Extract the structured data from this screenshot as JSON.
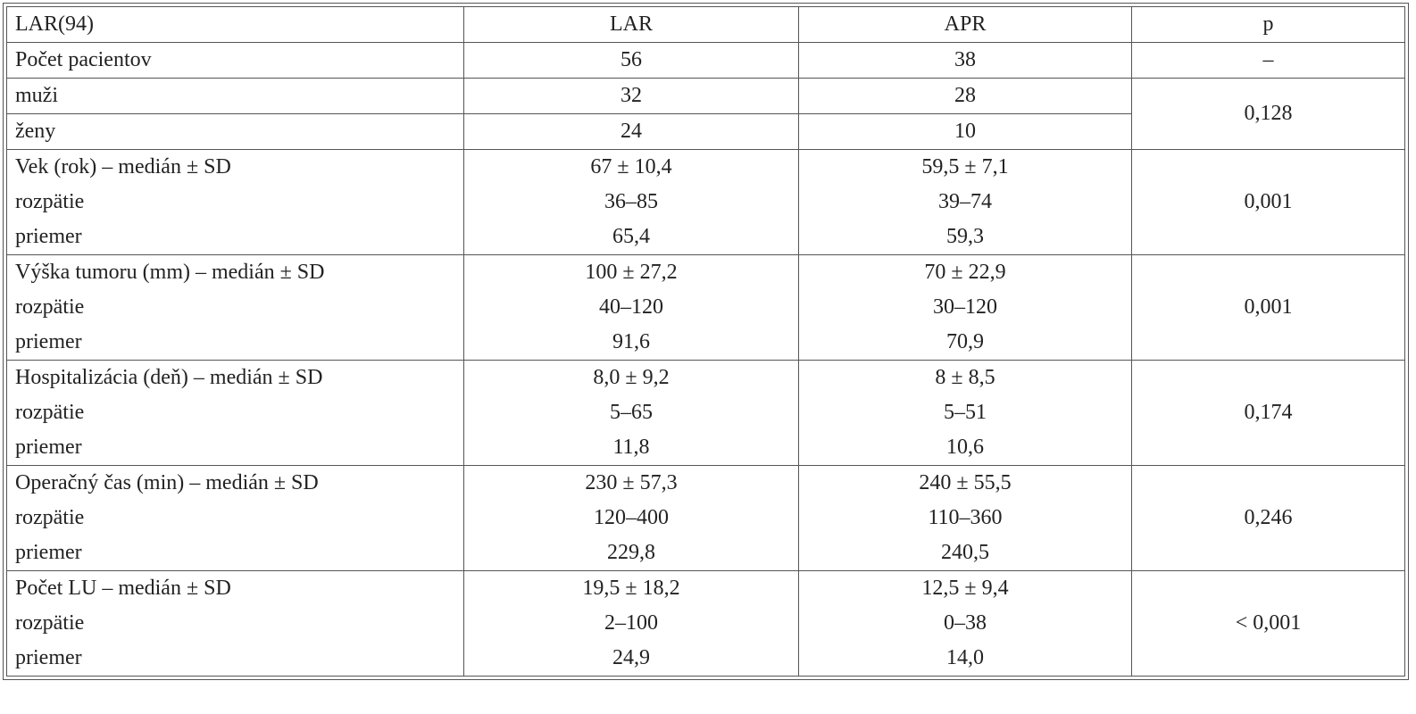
{
  "table": {
    "header": [
      "LAR(94)",
      "LAR",
      "APR",
      "p"
    ],
    "groups": [
      {
        "rows": [
          [
            [
              "Počet pacientov"
            ],
            [
              "56"
            ],
            [
              "38"
            ]
          ]
        ],
        "p": "–"
      },
      {
        "rows": [
          [
            [
              "muži"
            ],
            [
              "32"
            ],
            [
              "28"
            ]
          ],
          [
            [
              "ženy"
            ],
            [
              "24"
            ],
            [
              "10"
            ]
          ]
        ],
        "p": "0,128"
      },
      {
        "rows": [
          [
            [
              "Vek (rok) – medián ± SD",
              "rozpätie",
              "priemer"
            ],
            [
              "67 ± 10,4",
              "36–85",
              "65,4"
            ],
            [
              "59,5 ± 7,1",
              "39–74",
              "59,3"
            ]
          ]
        ],
        "p": "0,001"
      },
      {
        "rows": [
          [
            [
              "Výška tumoru (mm) – medián ± SD",
              "rozpätie",
              "priemer"
            ],
            [
              "100 ± 27,2",
              "40–120",
              "91,6"
            ],
            [
              "70 ± 22,9",
              "30–120",
              "70,9"
            ]
          ]
        ],
        "p": "0,001"
      },
      {
        "rows": [
          [
            [
              "Hospitalizácia (deň) – medián ± SD",
              "rozpätie",
              "priemer"
            ],
            [
              "8,0 ± 9,2",
              "5–65",
              "11,8"
            ],
            [
              "8 ± 8,5",
              "5–51",
              "10,6"
            ]
          ]
        ],
        "p": "0,174"
      },
      {
        "rows": [
          [
            [
              "Operačný čas (min) – medián ± SD",
              "rozpätie",
              "priemer"
            ],
            [
              "230 ± 57,3",
              "120–400",
              "229,8"
            ],
            [
              "240 ± 55,5",
              "110–360",
              "240,5"
            ]
          ]
        ],
        "p": "0,246"
      },
      {
        "rows": [
          [
            [
              "Počet LU – medián ± SD",
              "rozpätie",
              "priemer"
            ],
            [
              "19,5 ± 18,2",
              "2–100",
              "24,9"
            ],
            [
              "12,5 ± 9,4",
              "0–38",
              "14,0"
            ]
          ]
        ],
        "p": "< 0,001"
      }
    ]
  }
}
